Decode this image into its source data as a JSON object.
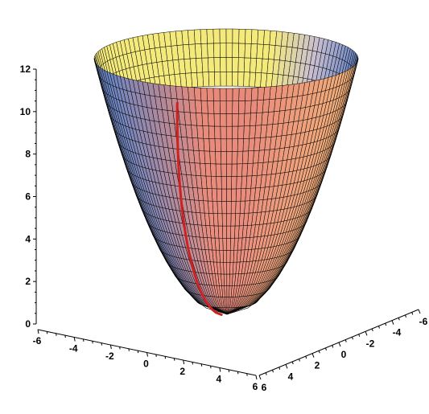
{
  "chart_data": {
    "type": "surface",
    "title": "",
    "surface": "paraboloid",
    "grid": true,
    "axes": {
      "x": {
        "range": [
          -6,
          6
        ],
        "ticks": [
          "-6",
          "-4",
          "-2",
          "0",
          "2",
          "4",
          "6"
        ]
      },
      "y": {
        "range": [
          -6,
          6
        ],
        "ticks": [
          "6",
          "4",
          "2",
          "0",
          "-2",
          "-4",
          "-6"
        ]
      },
      "z": {
        "range": [
          0,
          12
        ],
        "ticks": [
          "0",
          "2",
          "4",
          "6",
          "8",
          "10",
          "12"
        ]
      }
    },
    "mesh": {
      "radial_steps": 19,
      "angular_steps": 64
    },
    "curve": {
      "color": "#cc2222"
    },
    "colors": {
      "rim_yellow": "#f4ea7c",
      "mid_salmon": "#e88a7a",
      "side_blue": "#6a86c4",
      "orange": "#f2b27a",
      "curve_red": "#cc2222"
    }
  }
}
